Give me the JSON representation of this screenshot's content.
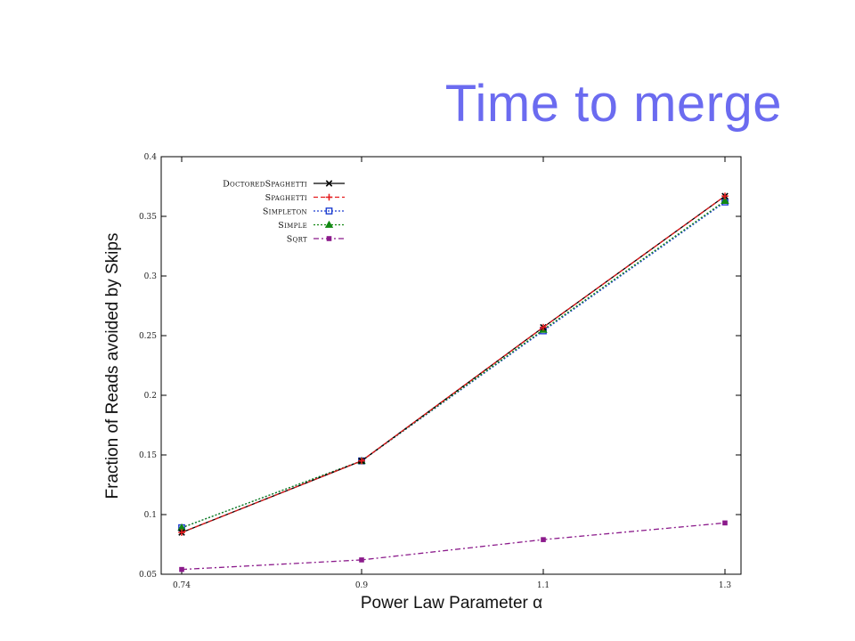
{
  "slide": {
    "title": "Time to merge"
  },
  "chart_data": {
    "type": "line",
    "x": [
      0.74,
      0.9,
      1.1,
      1.3
    ],
    "x_tick_labels": [
      "0.74",
      "0.9",
      "1.1",
      "1.3"
    ],
    "y_ticks": [
      0.05,
      0.1,
      0.15,
      0.2,
      0.25,
      0.3,
      0.35,
      0.4
    ],
    "y_tick_labels": [
      "0.05",
      "0.1",
      "0.15",
      "0.2",
      "0.25",
      "0.3",
      "0.35",
      "0.4"
    ],
    "xlim": [
      0.74,
      1.3
    ],
    "ylim": [
      0.05,
      0.4
    ],
    "xlabel": "Power Law Parameter α",
    "ylabel": "Fraction of Reads avoided by Skips",
    "grid": false,
    "legend_position": "top-left",
    "series": [
      {
        "name": "DoctoredSpaghetti",
        "color": "#000000",
        "marker": "cross",
        "dash": "solid",
        "values": [
          0.085,
          0.145,
          0.257,
          0.367
        ]
      },
      {
        "name": "Spaghetti",
        "color": "#e41a1c",
        "marker": "plus",
        "dash": "dashed",
        "values": [
          0.085,
          0.145,
          0.257,
          0.367
        ]
      },
      {
        "name": "Simpleton",
        "color": "#1f3fd0",
        "marker": "square-open",
        "dash": "dotted",
        "values": [
          0.089,
          0.145,
          0.254,
          0.362
        ]
      },
      {
        "name": "Simple",
        "color": "#118811",
        "marker": "triangle",
        "dash": "dotted",
        "values": [
          0.089,
          0.145,
          0.255,
          0.363
        ]
      },
      {
        "name": "Sqrt",
        "color": "#8b1a8b",
        "marker": "square-filled",
        "dash": "dashdot",
        "values": [
          0.054,
          0.062,
          0.079,
          0.093
        ]
      }
    ]
  }
}
